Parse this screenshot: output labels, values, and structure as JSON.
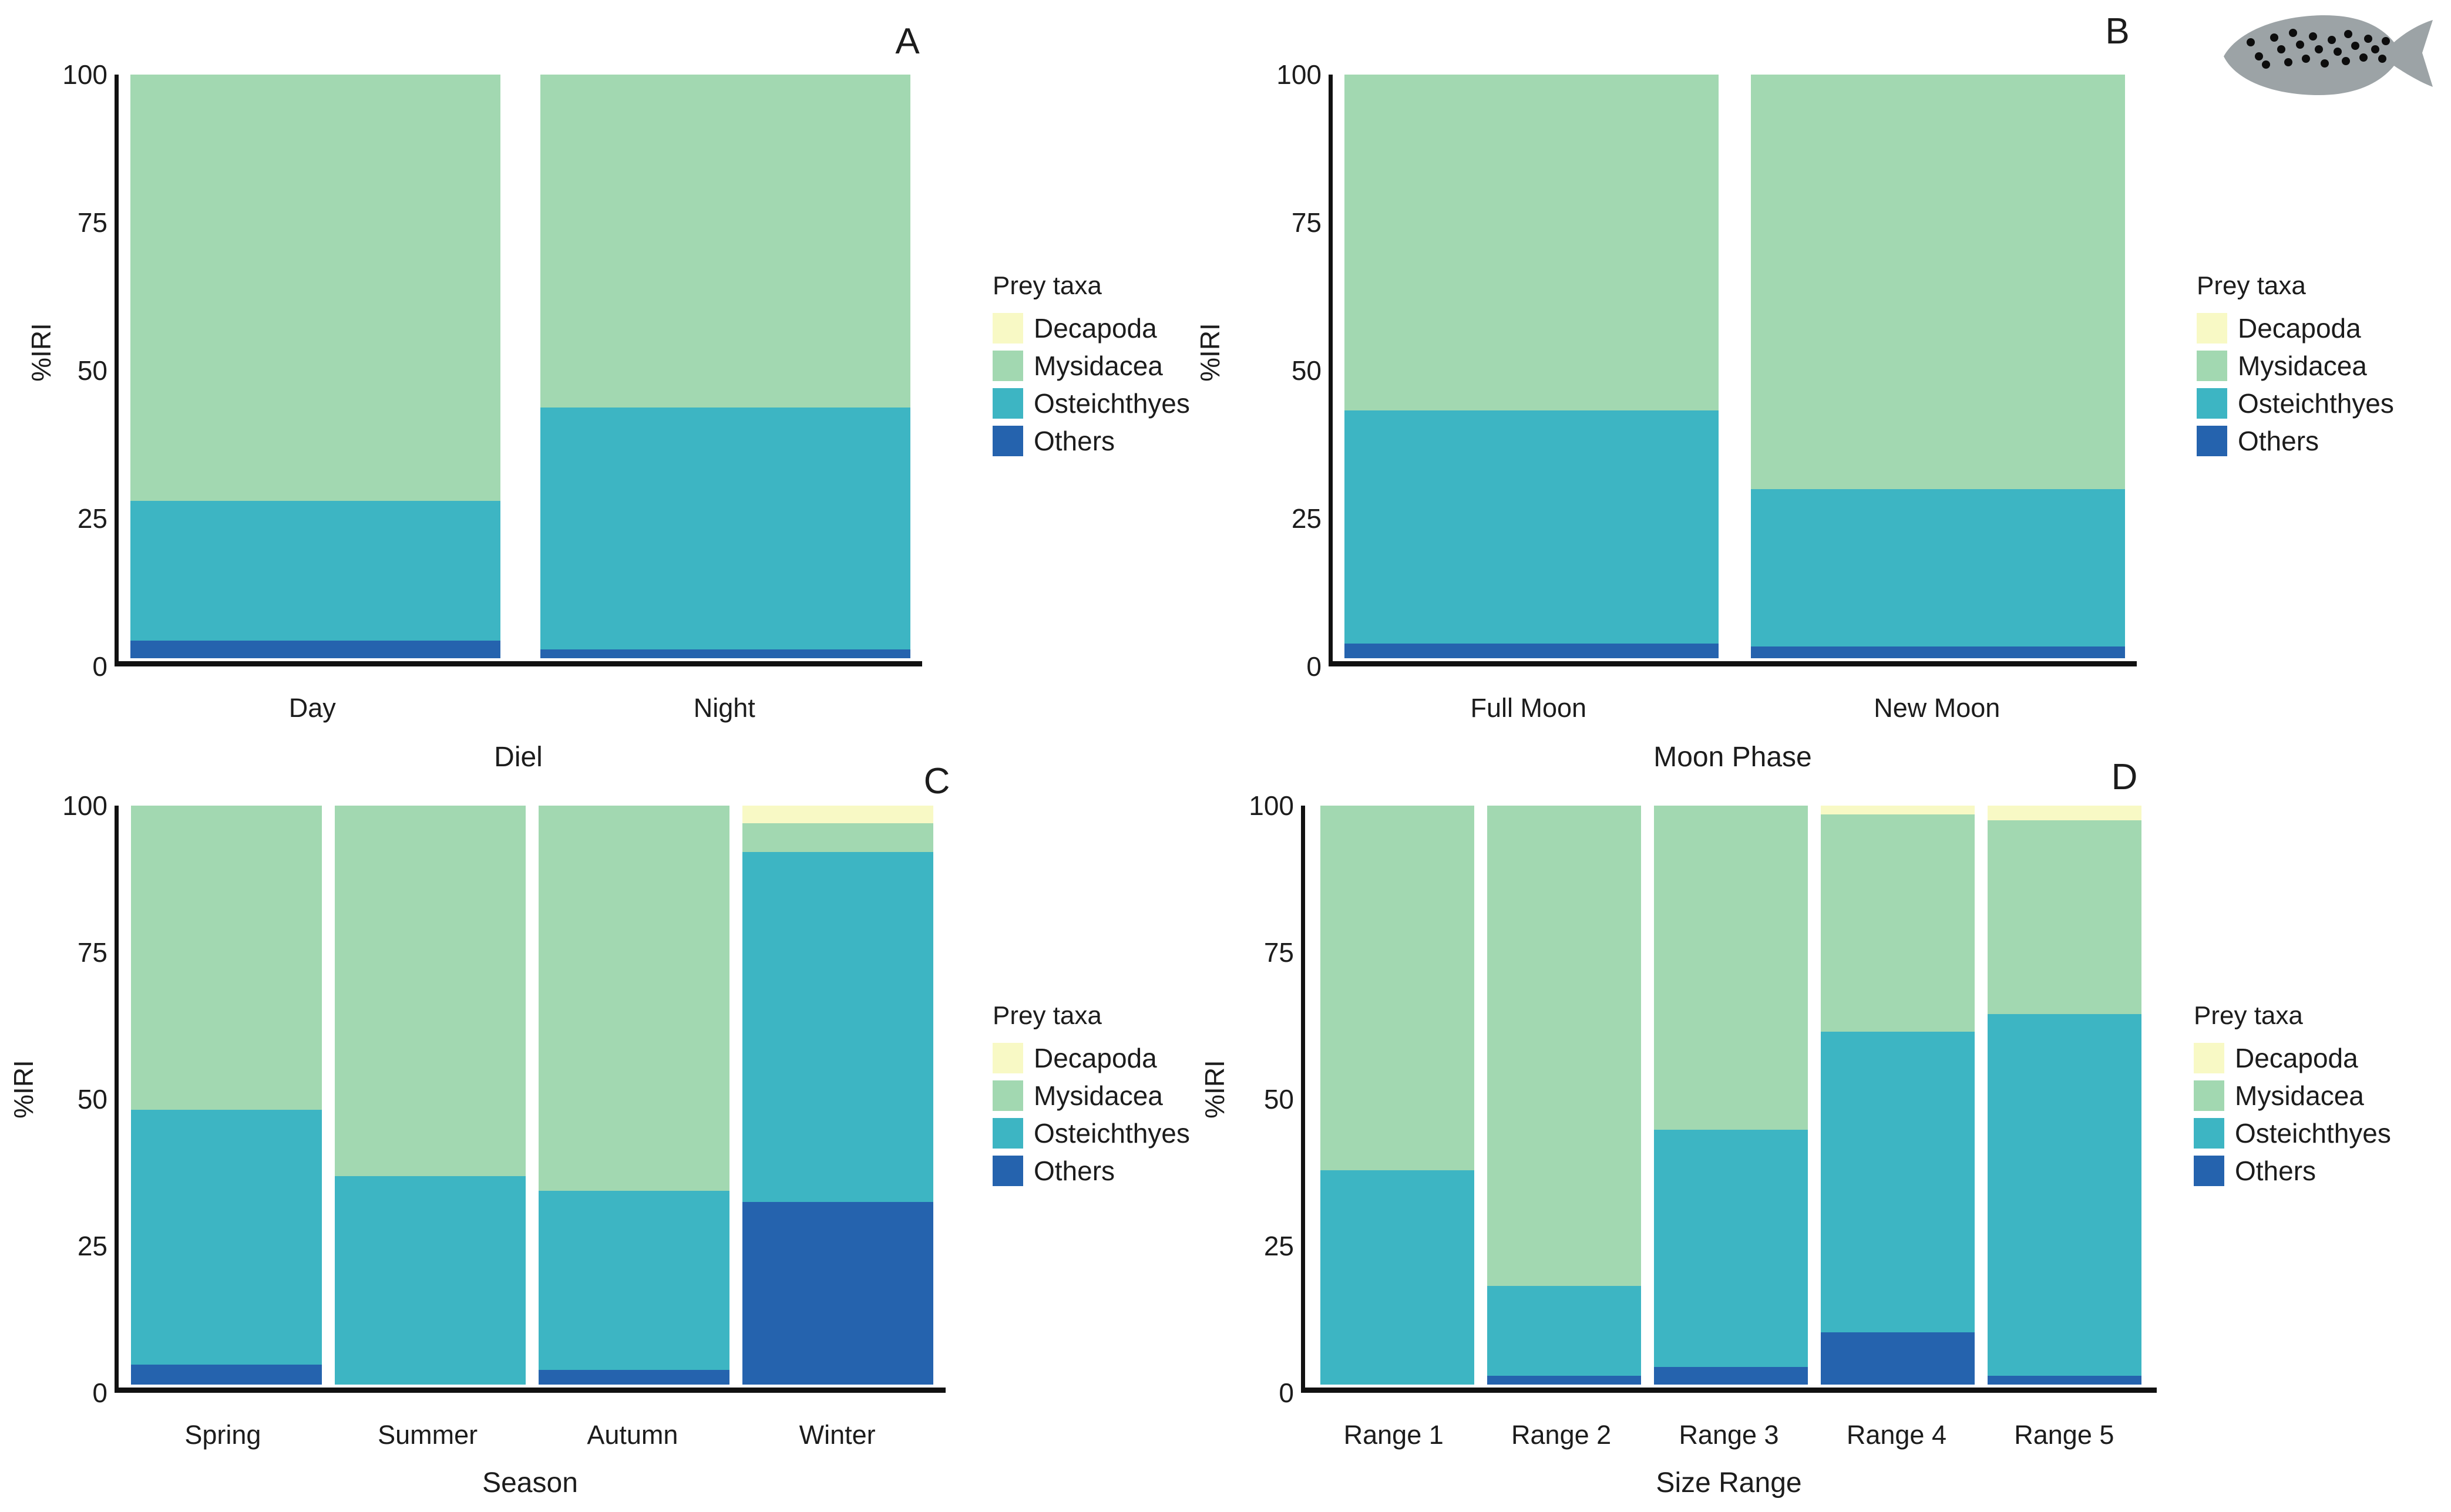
{
  "figure": {
    "background": "#ffffff",
    "text_color": "#1c1c1c",
    "axis_color": "#111111"
  },
  "ylabel": "%IRI",
  "yticks": [
    0,
    25,
    50,
    75,
    100
  ],
  "legend": {
    "title": "Prey taxa",
    "entries": [
      {
        "label": "Decapoda",
        "color": "#F8F9C5"
      },
      {
        "label": "Mysidacea",
        "color": "#A2D8B1"
      },
      {
        "label": "Osteichthyes",
        "color": "#3DB5C3"
      },
      {
        "label": "Others",
        "color": "#2563AE"
      }
    ]
  },
  "fish_icon": {
    "body_color": "#9CA3A6",
    "spot_color": "#0d0d0d"
  },
  "chart_data": [
    {
      "type": "bar",
      "stacked": true,
      "panel_label": "A",
      "xlabel": "Diel",
      "ylabel": "%IRI",
      "ylim": [
        0,
        100
      ],
      "grid": false,
      "legend_position": "right",
      "categories": [
        "Day",
        "Night"
      ],
      "series": [
        {
          "name": "Others",
          "values": [
            3,
            1.5
          ]
        },
        {
          "name": "Osteichthyes",
          "values": [
            24,
            41.5
          ]
        },
        {
          "name": "Mysidacea",
          "values": [
            73,
            57
          ]
        },
        {
          "name": "Decapoda",
          "values": [
            0,
            0
          ]
        }
      ]
    },
    {
      "type": "bar",
      "stacked": true,
      "panel_label": "B",
      "xlabel": "Moon Phase",
      "ylabel": "%IRI",
      "ylim": [
        0,
        100
      ],
      "grid": false,
      "legend_position": "right",
      "categories": [
        "Full Moon",
        "New Moon"
      ],
      "series": [
        {
          "name": "Others",
          "values": [
            2.5,
            2
          ]
        },
        {
          "name": "Osteichthyes",
          "values": [
            40,
            27
          ]
        },
        {
          "name": "Mysidacea",
          "values": [
            57.5,
            71
          ]
        },
        {
          "name": "Decapoda",
          "values": [
            0,
            0
          ]
        }
      ]
    },
    {
      "type": "bar",
      "stacked": true,
      "panel_label": "C",
      "xlabel": "Season",
      "ylabel": "%IRI",
      "ylim": [
        0,
        100
      ],
      "grid": false,
      "legend_position": "right",
      "categories": [
        "Spring",
        "Summer",
        "Autumn",
        "Winter"
      ],
      "series": [
        {
          "name": "Others",
          "values": [
            3.5,
            0,
            2.5,
            31.5
          ]
        },
        {
          "name": "Osteichthyes",
          "values": [
            44,
            36,
            31,
            60.5
          ]
        },
        {
          "name": "Mysidacea",
          "values": [
            52.5,
            64,
            66.5,
            5
          ]
        },
        {
          "name": "Decapoda",
          "values": [
            0,
            0,
            0,
            3
          ]
        }
      ]
    },
    {
      "type": "bar",
      "stacked": true,
      "panel_label": "D",
      "xlabel": "Size Range",
      "ylabel": "%IRI",
      "ylim": [
        0,
        100
      ],
      "grid": false,
      "legend_position": "right",
      "categories": [
        "Range 1",
        "Range 2",
        "Range 3",
        "Range 4",
        "Range 5"
      ],
      "series": [
        {
          "name": "Others",
          "values": [
            0,
            1.5,
            3,
            9,
            1.5
          ]
        },
        {
          "name": "Osteichthyes",
          "values": [
            37,
            15.5,
            41,
            52,
            62.5
          ]
        },
        {
          "name": "Mysidacea",
          "values": [
            63,
            83,
            56,
            37.5,
            33.5
          ]
        },
        {
          "name": "Decapoda",
          "values": [
            0,
            0,
            0,
            1.5,
            2.5
          ]
        }
      ]
    }
  ]
}
